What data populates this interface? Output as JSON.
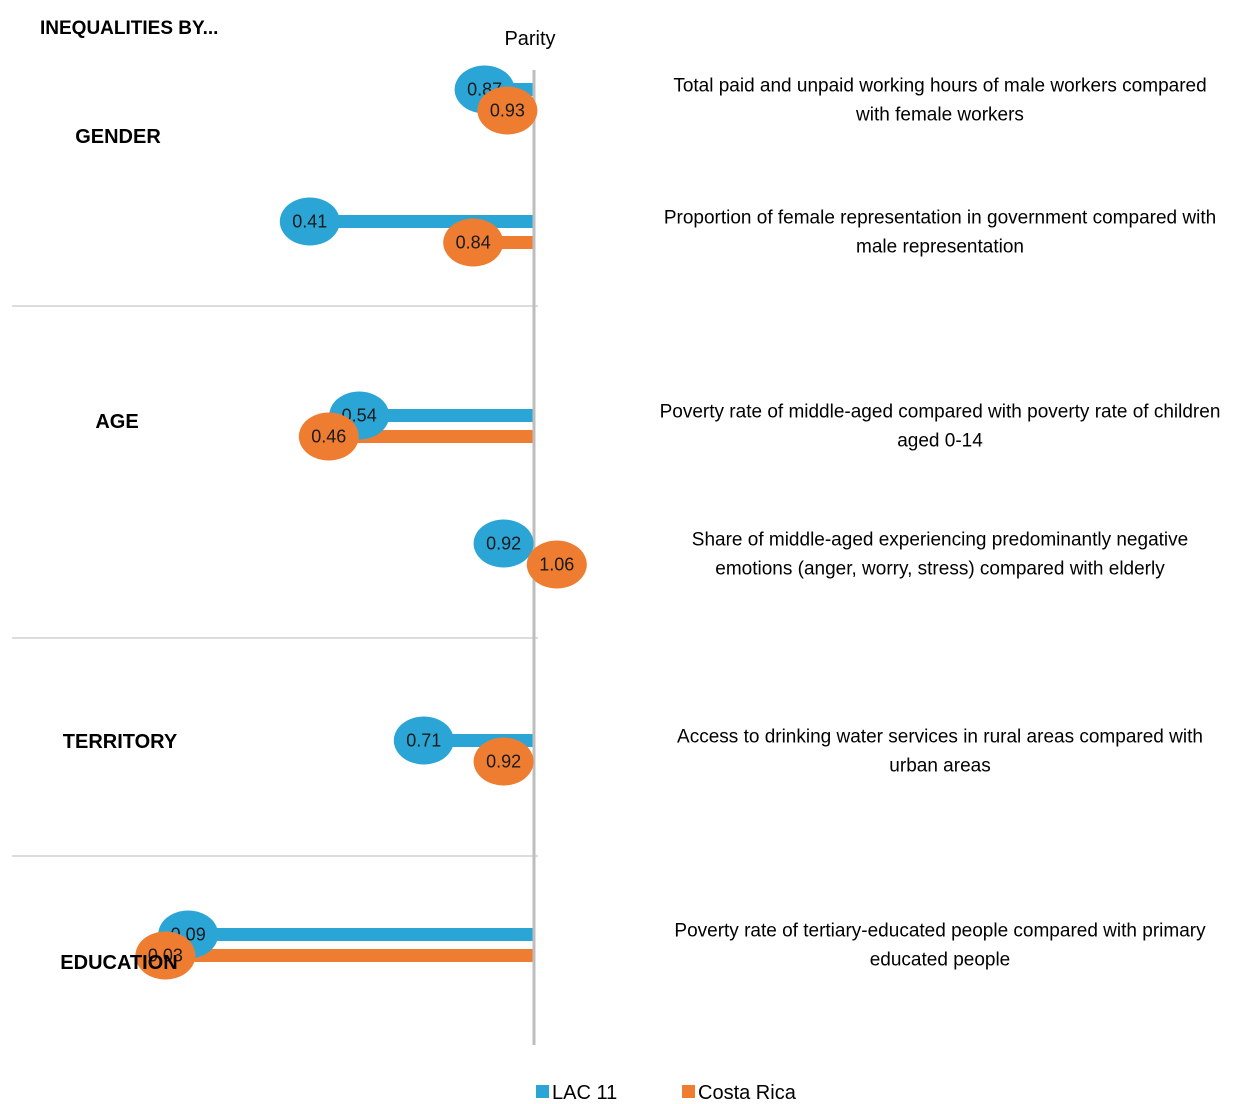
{
  "chart_data": {
    "type": "bar",
    "orientation": "horizontal",
    "title": "INEQUALITIES BY...",
    "reference_line": {
      "label": "Parity",
      "value": 1.0
    },
    "xlim": [
      0,
      1.2
    ],
    "groups": [
      {
        "label": "GENDER",
        "indicators": [
          {
            "description": [
              "Total paid and unpaid working hours of male workers compared",
              "with female workers"
            ],
            "values": [
              0.87,
              0.93
            ]
          },
          {
            "description": [
              "Proportion of female representation in government compared with",
              "male representation"
            ],
            "values": [
              0.41,
              0.84
            ]
          }
        ]
      },
      {
        "label": "AGE",
        "indicators": [
          {
            "description": [
              "Poverty rate of middle-aged compared with poverty rate of children",
              "aged 0-14"
            ],
            "values": [
              0.54,
              0.46
            ]
          },
          {
            "description": [
              "Share of middle-aged experiencing predominantly negative",
              "emotions (anger, worry, stress) compared with elderly"
            ],
            "values": [
              0.92,
              1.06
            ]
          }
        ]
      },
      {
        "label": "TERRITORY",
        "indicators": [
          {
            "description": [
              "Access to drinking water services in rural areas compared with",
              "urban areas"
            ],
            "values": [
              0.71,
              0.92
            ]
          }
        ]
      },
      {
        "label": "EDUCATION",
        "indicators": [
          {
            "description": [
              "Poverty rate of tertiary-educated people compared with primary",
              "educated people"
            ],
            "values": [
              0.09,
              0.03
            ]
          }
        ]
      }
    ],
    "series": [
      {
        "name": "LAC 11",
        "color": "#2ba5d6"
      },
      {
        "name": "Costa Rica",
        "color": "#ee7d31"
      }
    ],
    "legend": "bottom-center",
    "grid": false
  }
}
